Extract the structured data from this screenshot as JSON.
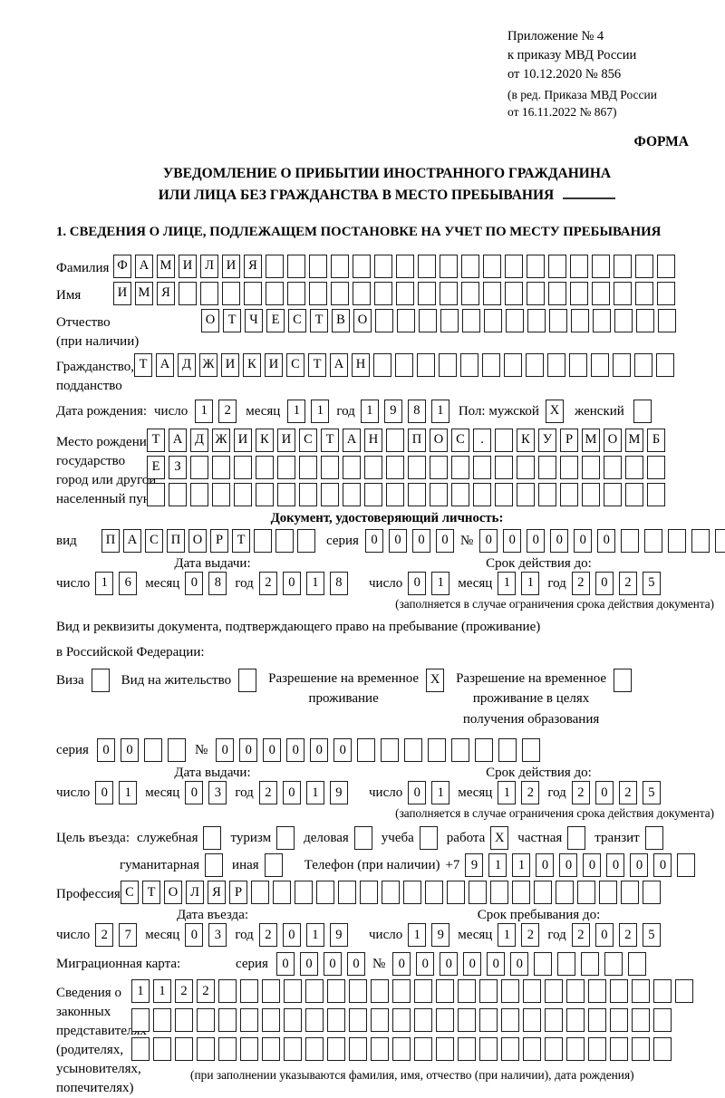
{
  "header": {
    "appendix": "Приложение № 4",
    "order_line1": "к приказу МВД России",
    "order_line2": "от 10.12.2020 № 856",
    "edition_line1": "(в ред. Приказа МВД России",
    "edition_line2": "от 16.11.2022 № 867)",
    "form_label": "ФОРМА"
  },
  "title": {
    "line1": "УВЕДОМЛЕНИЕ О ПРИБЫТИИ ИНОСТРАННОГО ГРАЖДАНИНА",
    "line2": "ИЛИ ЛИЦА БЕЗ ГРАЖДАНСТВА В МЕСТО ПРЕБЫВАНИЯ"
  },
  "section1_heading": "1. СВЕДЕНИЯ О ЛИЦЕ, ПОДЛЕЖАЩЕМ ПОСТАНОВКЕ НА УЧЕТ ПО МЕСТУ ПРЕБЫВАНИЯ",
  "person": {
    "surname": {
      "label": "Фамилия",
      "value": "ФАМИЛИЯ",
      "cells": 26
    },
    "given_name": {
      "label": "Имя",
      "value": "ИМЯ",
      "cells": 26
    },
    "patronymic": {
      "label": "Отчество",
      "sublabel": "(при наличии)",
      "value": "ОТЧЕСТВО",
      "cells": 22
    },
    "citizenship": {
      "label": "Гражданство,",
      "sublabel": "подданство",
      "value": "ТАДЖИКИСТАН",
      "cells": 25
    },
    "birth_date": {
      "label": "Дата рождения:",
      "day_label": "число",
      "day": {
        "value": "12",
        "cells": 2
      },
      "month_label": "месяц",
      "month": {
        "value": "11",
        "cells": 2
      },
      "year_label": "год",
      "year": {
        "value": "1981",
        "cells": 4
      },
      "sex_label": "Пол: мужской",
      "male": {
        "value": "X",
        "cells": 1
      },
      "female_label": "женский",
      "female": {
        "value": "",
        "cells": 1
      }
    },
    "birth_place": {
      "label": "Место рождения:",
      "sublabel1": "государство",
      "sublabel2": "город или другой",
      "sublabel3": "населенный пункт",
      "row1": {
        "value": "ТАДЖИКИСТАН ПОС. КУРМОМБ",
        "cells": 24
      },
      "row2": {
        "value": "ЕЗ",
        "cells": 24
      },
      "row3": {
        "value": "",
        "cells": 24
      }
    }
  },
  "identity_doc": {
    "heading": "Документ, удостоверяющий личность:",
    "type_label": "вид",
    "type": {
      "value": "ПАСПОРТ",
      "cells": 10
    },
    "series_label": "серия",
    "series": {
      "value": "0000",
      "cells": 4
    },
    "number_label": "№",
    "number": {
      "value": "000000",
      "cells": 11
    },
    "issue_heading": "Дата выдачи:",
    "issue": {
      "day_label": "число",
      "day": {
        "value": "16",
        "cells": 2
      },
      "month_label": "месяц",
      "month": {
        "value": "08",
        "cells": 2
      },
      "year_label": "год",
      "year": {
        "value": "2018",
        "cells": 4
      }
    },
    "valid_heading": "Срок действия до:",
    "valid": {
      "day_label": "число",
      "day": {
        "value": "01",
        "cells": 2
      },
      "month_label": "месяц",
      "month": {
        "value": "11",
        "cells": 2
      },
      "year_label": "год",
      "year": {
        "value": "2025",
        "cells": 4
      }
    },
    "note": "(заполняется в случае ограничения срока действия документа)"
  },
  "residence_doc": {
    "intro_line1": "Вид и реквизиты документа, подтверждающего право на пребывание (проживание)",
    "intro_line2": "в Российской Федерации:",
    "visa_label": "Виза",
    "visa": {
      "value": "",
      "cells": 1
    },
    "residence_permit_label": "Вид на жительство",
    "residence_permit": {
      "value": "",
      "cells": 1
    },
    "temp_permit_lines": [
      "Разрешение на временное",
      "проживание"
    ],
    "temp_permit": {
      "value": "X",
      "cells": 1
    },
    "edu_permit_lines": [
      "Разрешение на временное",
      "проживание в целях",
      "получения образования"
    ],
    "edu_permit": {
      "value": "",
      "cells": 1
    },
    "series_label": "серия",
    "series": {
      "value": "00",
      "cells": 4
    },
    "number_label": "№",
    "number": {
      "value": "000000",
      "cells": 14
    },
    "issue_heading": "Дата выдачи:",
    "issue": {
      "day_label": "число",
      "day": {
        "value": "01",
        "cells": 2
      },
      "month_label": "месяц",
      "month": {
        "value": "03",
        "cells": 2
      },
      "year_label": "год",
      "year": {
        "value": "2019",
        "cells": 4
      }
    },
    "valid_heading": "Срок действия до:",
    "valid": {
      "day_label": "число",
      "day": {
        "value": "01",
        "cells": 2
      },
      "month_label": "месяц",
      "month": {
        "value": "12",
        "cells": 2
      },
      "year_label": "год",
      "year": {
        "value": "2025",
        "cells": 4
      }
    },
    "note": "(заполняется в случае ограничения срока действия документа)"
  },
  "visit": {
    "purpose_label": "Цель въезда:",
    "purposes": [
      {
        "label": "служебная",
        "box": {
          "value": "",
          "cells": 1
        }
      },
      {
        "label": "туризм",
        "box": {
          "value": "",
          "cells": 1
        }
      },
      {
        "label": "деловая",
        "box": {
          "value": "",
          "cells": 1
        }
      },
      {
        "label": "учеба",
        "box": {
          "value": "",
          "cells": 1
        }
      },
      {
        "label": "работа",
        "box": {
          "value": "X",
          "cells": 1
        }
      },
      {
        "label": "частная",
        "box": {
          "value": "",
          "cells": 1
        }
      },
      {
        "label": "транзит",
        "box": {
          "value": "",
          "cells": 1
        }
      },
      {
        "label": "гуманитарная",
        "box": {
          "value": "",
          "cells": 1
        }
      },
      {
        "label": "иная",
        "box": {
          "value": "",
          "cells": 1
        }
      }
    ],
    "phone_label": "Телефон (при наличии)",
    "phone_prefix": "+7",
    "phone": {
      "value": "911000000",
      "cells": 10
    },
    "profession_label": "Профессия",
    "profession": {
      "value": "СТОЛЯР",
      "cells": 25
    },
    "entry_heading": "Дата въезда:",
    "entry": {
      "day_label": "число",
      "day": {
        "value": "27",
        "cells": 2
      },
      "month_label": "месяц",
      "month": {
        "value": "03",
        "cells": 2
      },
      "year_label": "год",
      "year": {
        "value": "2019",
        "cells": 4
      }
    },
    "stay_heading": "Срок пребывания до:",
    "stay": {
      "day_label": "число",
      "day": {
        "value": "19",
        "cells": 2
      },
      "month_label": "месяц",
      "month": {
        "value": "12",
        "cells": 2
      },
      "year_label": "год",
      "year": {
        "value": "2025",
        "cells": 4
      }
    },
    "migration_card_label": "Миграционная карта:",
    "migration_series_label": "серия",
    "migration_series": {
      "value": "0000",
      "cells": 4
    },
    "migration_number_label": "№",
    "migration_number": {
      "value": "000000",
      "cells": 11
    }
  },
  "representatives": {
    "label_lines": [
      "Сведения о",
      "законных",
      "представителях",
      "(родителях,",
      "усыновителях,",
      "попечителях)"
    ],
    "row1": {
      "value": "1122",
      "cells": 26
    },
    "row2": {
      "value": "",
      "cells": 25
    },
    "row3": {
      "value": "",
      "cells": 25
    },
    "note": "(при заполнении указываются фамилия, имя, отчество (при наличии), дата рождения)"
  }
}
